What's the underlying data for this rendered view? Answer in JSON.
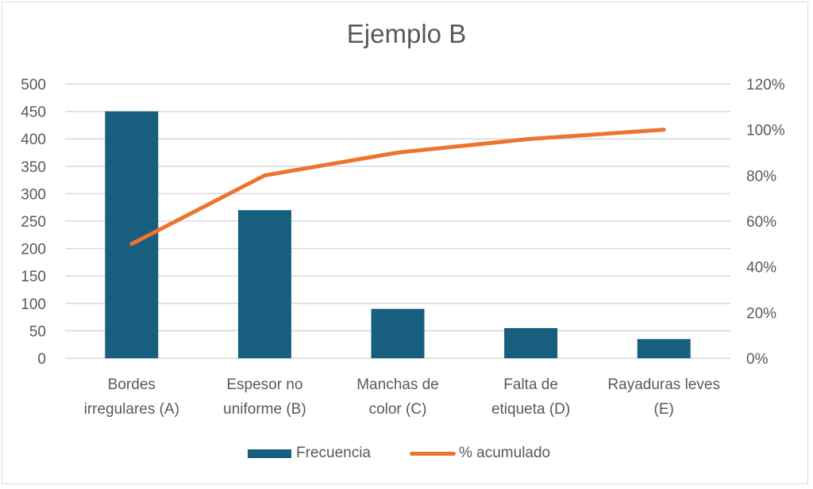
{
  "chart": {
    "title": "Ejemplo B",
    "left_axis_ticks": [
      "0",
      "50",
      "100",
      "150",
      "200",
      "250",
      "300",
      "350",
      "400",
      "450",
      "500"
    ],
    "right_axis_ticks": [
      "0%",
      "20%",
      "40%",
      "60%",
      "80%",
      "100%",
      "120%"
    ],
    "categories_lines": [
      [
        "Bordes",
        "irregulares (A)"
      ],
      [
        "Espesor no",
        "uniforme (B)"
      ],
      [
        "Manchas de",
        "color (C)"
      ],
      [
        "Falta de",
        "etiqueta (D)"
      ],
      [
        "Rayaduras leves",
        "(E)"
      ]
    ],
    "legend": {
      "bar_label": "Frecuencia",
      "line_label": "% acumulado"
    },
    "colors": {
      "bar": "#175E7F",
      "line": "#ED7430",
      "grid": "#D9D9D9",
      "text": "#595959"
    }
  },
  "chart_data": {
    "type": "bar",
    "title": "Ejemplo B",
    "categories": [
      "Bordes irregulares (A)",
      "Espesor no uniforme (B)",
      "Manchas de color (C)",
      "Falta de etiqueta (D)",
      "Rayaduras leves (E)"
    ],
    "series": [
      {
        "name": "Frecuencia",
        "type": "bar",
        "axis": "left",
        "values": [
          450,
          270,
          90,
          55,
          35
        ]
      },
      {
        "name": "% acumulado",
        "type": "line",
        "axis": "right",
        "values": [
          50,
          80,
          90,
          96,
          100
        ]
      }
    ],
    "xlabel": "",
    "ylabel": "",
    "ylim": [
      0,
      500
    ],
    "y2lim": [
      0,
      120
    ],
    "y_ticks": [
      0,
      50,
      100,
      150,
      200,
      250,
      300,
      350,
      400,
      450,
      500
    ],
    "y2_ticks": [
      "0%",
      "20%",
      "40%",
      "60%",
      "80%",
      "100%",
      "120%"
    ],
    "grid": true,
    "legend_position": "bottom"
  }
}
